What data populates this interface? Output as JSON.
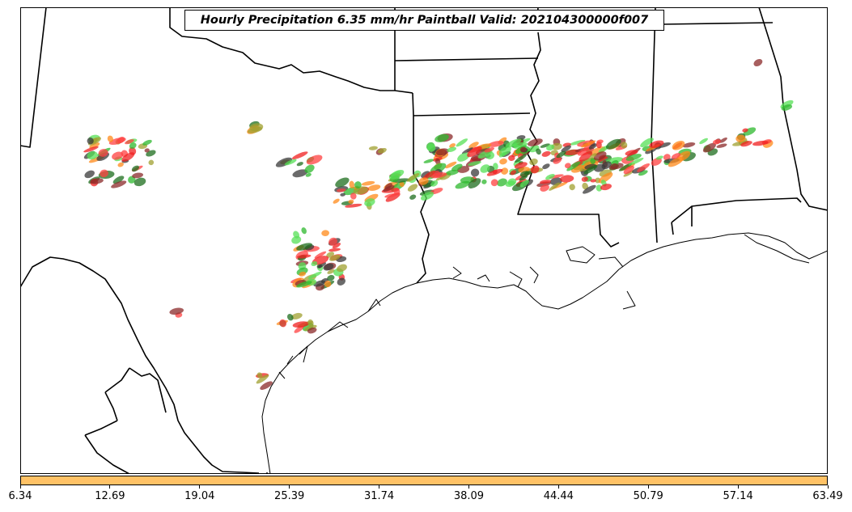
{
  "title": "Hourly Precipitation 6.35 mm/hr Paintball Valid: 202104300000f007",
  "colorbar": {
    "color": "#ffc266",
    "ticks": [
      "6.34",
      "12.69",
      "19.04",
      "25.39",
      "31.74",
      "38.09",
      "44.44",
      "50.79",
      "57.14",
      "63.49"
    ]
  },
  "member_colors": [
    "#2db82d",
    "#55e055",
    "#f02020",
    "#ff4040",
    "#ff8a1a",
    "#a0a030",
    "#8b2a2a",
    "#1e6e1e",
    "#3a3a3a"
  ]
}
